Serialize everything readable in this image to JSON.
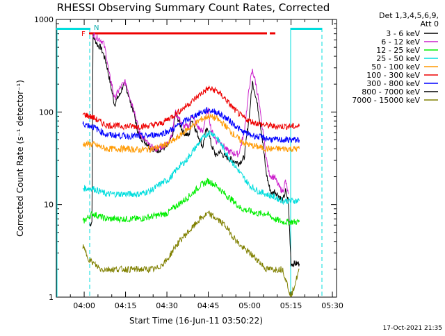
{
  "page": {
    "title": "RHESSI Observing Summary Count Rates, Corrected",
    "footer_date": "17-Oct-2021 21:35"
  },
  "chart_data": {
    "type": "line",
    "title": "RHESSI Observing Summary Count Rates, Corrected",
    "xlabel": "Start Time (16-Jun-11 03:50:22)",
    "ylabel": "Corrected Count Rate (s⁻¹ detector⁻¹)",
    "yscale": "log",
    "ylim": [
      1,
      1000
    ],
    "xlim_minutes": [
      229.9,
      331.5
    ],
    "x_ticks": [
      {
        "label": "04:00",
        "min": 240
      },
      {
        "label": "04:15",
        "min": 255
      },
      {
        "label": "04:30",
        "min": 270
      },
      {
        "label": "04:45",
        "min": 285
      },
      {
        "label": "05:00",
        "min": 300
      },
      {
        "label": "05:15",
        "min": 315
      },
      {
        "label": "05:30",
        "min": 330
      }
    ],
    "y_ticks": [
      {
        "label": "1",
        "v": 1
      },
      {
        "label": "10",
        "v": 10
      },
      {
        "label": "100",
        "v": 100
      },
      {
        "label": "1000",
        "v": 1000
      }
    ],
    "legend_header": [
      "Det 1,3,4,5,6,9,",
      "Att 0"
    ],
    "series": [
      {
        "name": "3 - 6 keV",
        "color": "#000000",
        "points": [
          [
            242,
            6
          ],
          [
            242.8,
            6.5
          ],
          [
            243.2,
            650
          ],
          [
            244,
            600
          ],
          [
            245,
            520
          ],
          [
            246,
            500
          ],
          [
            247,
            420
          ],
          [
            248,
            340
          ],
          [
            249,
            240
          ],
          [
            250,
            170
          ],
          [
            251,
            120
          ],
          [
            252,
            140
          ],
          [
            253,
            155
          ],
          [
            254,
            190
          ],
          [
            255,
            195
          ],
          [
            256,
            155
          ],
          [
            257,
            120
          ],
          [
            258,
            100
          ],
          [
            259,
            70
          ],
          [
            260,
            55
          ],
          [
            262,
            48
          ],
          [
            264,
            42
          ],
          [
            266,
            38
          ],
          [
            268,
            40
          ],
          [
            270,
            42
          ],
          [
            272,
            55
          ],
          [
            273,
            95
          ],
          [
            274,
            85
          ],
          [
            275,
            70
          ],
          [
            276,
            60
          ],
          [
            278,
            55
          ],
          [
            279,
            85
          ],
          [
            280,
            70
          ],
          [
            281,
            58
          ],
          [
            282,
            50
          ],
          [
            283,
            42
          ],
          [
            284,
            60
          ],
          [
            285,
            65
          ],
          [
            286,
            45
          ],
          [
            287,
            38
          ],
          [
            288,
            33
          ],
          [
            289,
            38
          ],
          [
            290,
            35
          ],
          [
            292,
            32
          ],
          [
            294,
            30
          ],
          [
            296,
            28
          ],
          [
            298,
            32
          ],
          [
            300,
            100
          ],
          [
            301,
            210
          ],
          [
            302,
            160
          ],
          [
            303,
            110
          ],
          [
            304,
            70
          ],
          [
            305,
            40
          ],
          [
            306,
            22
          ],
          [
            307,
            16
          ],
          [
            308,
            13
          ],
          [
            309,
            14
          ],
          [
            310,
            13
          ],
          [
            311,
            12
          ],
          [
            312,
            11
          ],
          [
            313,
            14
          ],
          [
            314,
            11
          ],
          [
            315,
            2.3
          ],
          [
            316,
            2.3
          ],
          [
            318,
            2.3
          ]
        ]
      },
      {
        "name": "6 - 12 keV",
        "color": "#cc22cc",
        "points": [
          [
            243.2,
            700
          ],
          [
            244,
            650
          ],
          [
            245,
            630
          ],
          [
            246,
            600
          ],
          [
            247,
            560
          ],
          [
            248,
            420
          ],
          [
            249,
            260
          ],
          [
            250,
            200
          ],
          [
            251,
            140
          ],
          [
            252,
            160
          ],
          [
            253,
            180
          ],
          [
            254,
            200
          ],
          [
            255,
            210
          ],
          [
            256,
            170
          ],
          [
            257,
            130
          ],
          [
            258,
            110
          ],
          [
            259,
            80
          ],
          [
            260,
            60
          ],
          [
            262,
            50
          ],
          [
            264,
            42
          ],
          [
            266,
            40
          ],
          [
            268,
            42
          ],
          [
            270,
            45
          ],
          [
            272,
            60
          ],
          [
            273,
            100
          ],
          [
            274,
            90
          ],
          [
            275,
            78
          ],
          [
            276,
            70
          ],
          [
            278,
            70
          ],
          [
            279,
            95
          ],
          [
            280,
            80
          ],
          [
            281,
            70
          ],
          [
            282,
            65
          ],
          [
            283,
            60
          ],
          [
            284,
            90
          ],
          [
            285,
            105
          ],
          [
            286,
            65
          ],
          [
            287,
            55
          ],
          [
            288,
            48
          ],
          [
            289,
            50
          ],
          [
            290,
            45
          ],
          [
            292,
            38
          ],
          [
            294,
            36
          ],
          [
            296,
            35
          ],
          [
            298,
            60
          ],
          [
            300,
            200
          ],
          [
            301,
            280
          ],
          [
            302,
            220
          ],
          [
            303,
            150
          ],
          [
            304,
            90
          ],
          [
            305,
            55
          ],
          [
            306,
            32
          ],
          [
            307,
            22
          ],
          [
            308,
            20
          ],
          [
            309,
            20
          ],
          [
            310,
            17
          ],
          [
            311,
            15
          ],
          [
            312,
            14
          ],
          [
            313,
            18
          ],
          [
            314,
            13
          ]
        ]
      },
      {
        "name": "12 - 25 keV",
        "color": "#00ee00",
        "points": [
          [
            239.5,
            6.5
          ],
          [
            243,
            8
          ],
          [
            248,
            7
          ],
          [
            255,
            7
          ],
          [
            260,
            7
          ],
          [
            265,
            7.5
          ],
          [
            270,
            8
          ],
          [
            273,
            9.5
          ],
          [
            276,
            11
          ],
          [
            279,
            13
          ],
          [
            282,
            16
          ],
          [
            285,
            18
          ],
          [
            288,
            16
          ],
          [
            291,
            13
          ],
          [
            294,
            11
          ],
          [
            297,
            9
          ],
          [
            300,
            8.5
          ],
          [
            303,
            8
          ],
          [
            306,
            8
          ],
          [
            309,
            7
          ],
          [
            312,
            6.5
          ],
          [
            315,
            6.5
          ],
          [
            318,
            6.5
          ]
        ]
      },
      {
        "name": "25 - 50 keV",
        "color": "#00dddd",
        "points": [
          [
            239.5,
            15
          ],
          [
            243,
            15
          ],
          [
            248,
            13
          ],
          [
            255,
            13
          ],
          [
            260,
            13
          ],
          [
            264,
            14
          ],
          [
            268,
            17
          ],
          [
            271,
            19
          ],
          [
            274,
            25
          ],
          [
            277,
            30
          ],
          [
            280,
            40
          ],
          [
            283,
            52
          ],
          [
            285,
            60
          ],
          [
            287,
            58
          ],
          [
            289,
            48
          ],
          [
            291,
            38
          ],
          [
            294,
            28
          ],
          [
            297,
            21
          ],
          [
            300,
            16
          ],
          [
            303,
            14
          ],
          [
            306,
            13
          ],
          [
            309,
            12
          ],
          [
            312,
            11
          ],
          [
            315,
            11
          ],
          [
            318,
            11
          ]
        ]
      },
      {
        "name": "50 - 100 keV",
        "color": "#ff9900",
        "points": [
          [
            239.5,
            45
          ],
          [
            243,
            45
          ],
          [
            248,
            40
          ],
          [
            255,
            40
          ],
          [
            260,
            39
          ],
          [
            265,
            40
          ],
          [
            270,
            45
          ],
          [
            273,
            50
          ],
          [
            276,
            60
          ],
          [
            279,
            70
          ],
          [
            282,
            82
          ],
          [
            285,
            90
          ],
          [
            288,
            85
          ],
          [
            291,
            72
          ],
          [
            294,
            58
          ],
          [
            297,
            48
          ],
          [
            300,
            44
          ],
          [
            303,
            42
          ],
          [
            306,
            40
          ],
          [
            309,
            40
          ],
          [
            312,
            40
          ],
          [
            315,
            40
          ],
          [
            318,
            40
          ]
        ]
      },
      {
        "name": "100 - 300 keV",
        "color": "#ee0000",
        "points": [
          [
            239.5,
            95
          ],
          [
            243,
            88
          ],
          [
            248,
            72
          ],
          [
            255,
            70
          ],
          [
            262,
            70
          ],
          [
            268,
            75
          ],
          [
            272,
            90
          ],
          [
            276,
            110
          ],
          [
            279,
            130
          ],
          [
            282,
            155
          ],
          [
            285,
            180
          ],
          [
            288,
            170
          ],
          [
            291,
            140
          ],
          [
            294,
            110
          ],
          [
            297,
            90
          ],
          [
            300,
            80
          ],
          [
            303,
            75
          ],
          [
            306,
            72
          ],
          [
            309,
            70
          ],
          [
            312,
            70
          ],
          [
            315,
            70
          ],
          [
            318,
            70
          ]
        ]
      },
      {
        "name": "300 - 800 keV",
        "color": "#0000ff",
        "points": [
          [
            239.5,
            75
          ],
          [
            243,
            70
          ],
          [
            248,
            57
          ],
          [
            255,
            55
          ],
          [
            262,
            55
          ],
          [
            268,
            58
          ],
          [
            272,
            65
          ],
          [
            276,
            78
          ],
          [
            279,
            88
          ],
          [
            282,
            98
          ],
          [
            285,
            105
          ],
          [
            288,
            100
          ],
          [
            291,
            88
          ],
          [
            294,
            75
          ],
          [
            297,
            62
          ],
          [
            300,
            57
          ],
          [
            303,
            54
          ],
          [
            306,
            52
          ],
          [
            309,
            50
          ],
          [
            312,
            50
          ],
          [
            315,
            50
          ],
          [
            318,
            50
          ]
        ]
      },
      {
        "name": "800 - 7000 keV",
        "color": "#000000",
        "points": []
      },
      {
        "name": "7000 - 15000 keV",
        "color": "#808000",
        "points": [
          [
            239.5,
            3.5
          ],
          [
            242,
            2.5
          ],
          [
            246,
            2
          ],
          [
            250,
            2
          ],
          [
            256,
            2
          ],
          [
            262,
            2
          ],
          [
            266,
            2
          ],
          [
            270,
            2.5
          ],
          [
            273,
            3.5
          ],
          [
            276,
            4.5
          ],
          [
            279,
            5.5
          ],
          [
            282,
            7
          ],
          [
            285,
            8
          ],
          [
            288,
            7
          ],
          [
            291,
            6
          ],
          [
            294,
            4.5
          ],
          [
            297,
            3.5
          ],
          [
            300,
            3
          ],
          [
            303,
            2.5
          ],
          [
            306,
            2
          ],
          [
            309,
            2
          ],
          [
            312,
            2
          ],
          [
            315,
            1
          ],
          [
            318,
            2
          ]
        ]
      }
    ],
    "annotations": [
      {
        "label": "F",
        "color": "#ee0000"
      },
      {
        "label": "N",
        "color": "#00dddd"
      }
    ]
  }
}
